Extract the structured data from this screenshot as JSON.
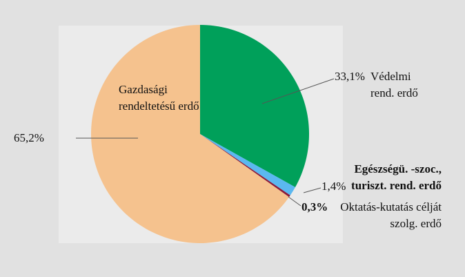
{
  "chart_data": {
    "type": "pie",
    "categories": [
      "Védelmi rend. erdő",
      "Egészségü. -szoc., turiszt. rend. erdő",
      "Oktatás-kutatás célját szolg. erdő",
      "Gazdasági rendeltetésű erdő"
    ],
    "values": [
      33.1,
      1.4,
      0.3,
      65.2
    ],
    "value_labels": [
      "33,1%",
      "1,4%",
      "0,3%",
      "65,2%"
    ],
    "colors": [
      "#00a05a",
      "#5bb8f0",
      "#8b1a3a",
      "#f5c28e"
    ]
  }
}
